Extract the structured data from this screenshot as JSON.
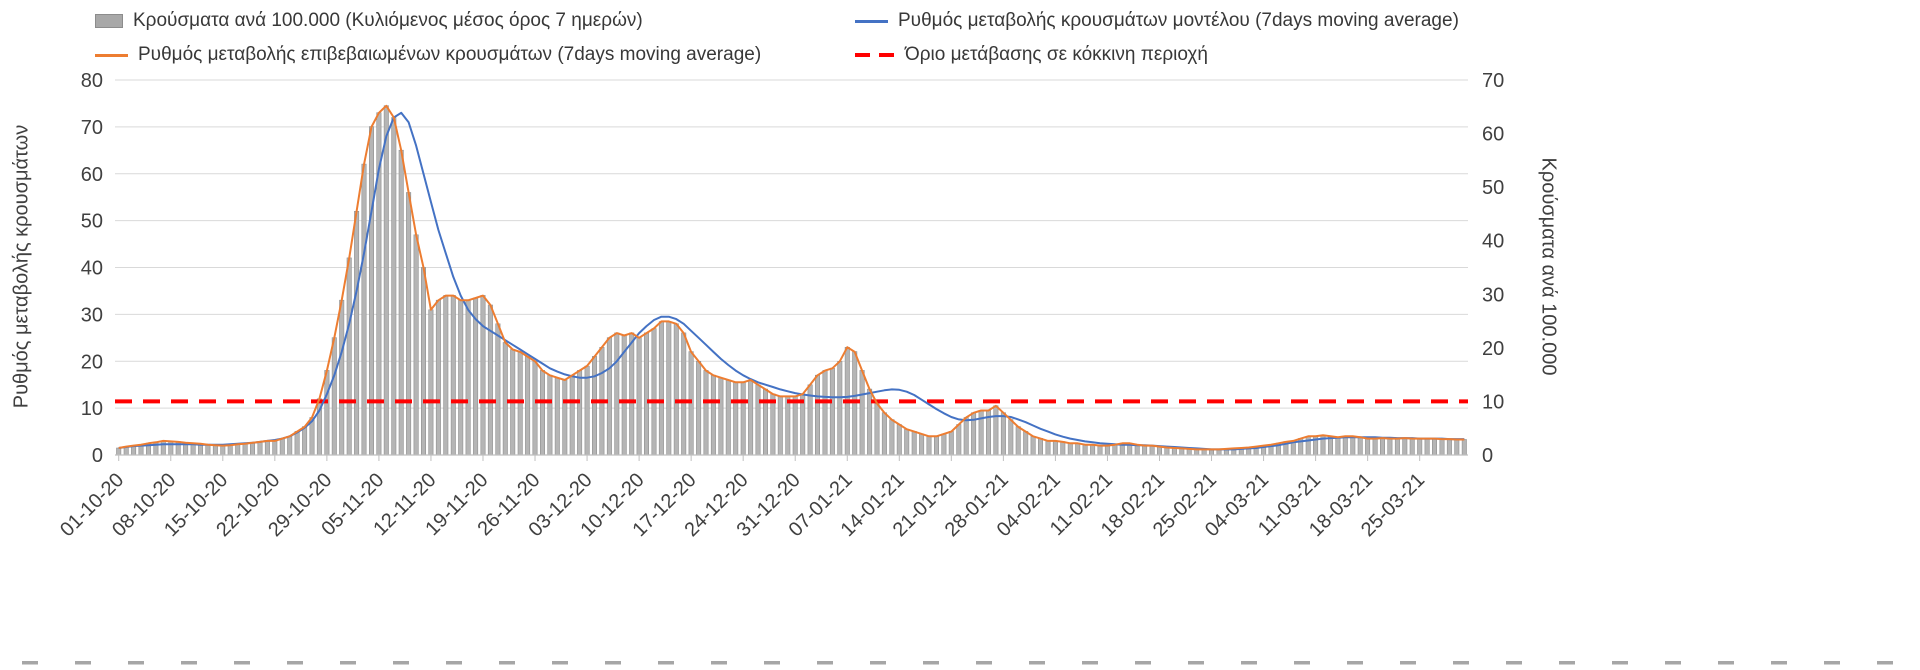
{
  "legend": [
    {
      "label": "Κρούσματα ανά 100.000 (Κυλιόμενος μέσος όρος 7 ημερών)",
      "type": "bar",
      "color": "#a8a8a8"
    },
    {
      "label": "Ρυθμός μεταβολής κρουσμάτων μοντέλου (7days moving average)",
      "type": "line",
      "color": "#4472c4"
    },
    {
      "label": "Ρυθμός μεταβολής επιβεβαιωμένων κρουσμάτων (7days moving average)",
      "type": "line",
      "color": "#ed7d31"
    },
    {
      "label": "Όριο μετάβασης σε κόκκινη περιοχή",
      "type": "dashed",
      "color": "#ff0000"
    }
  ],
  "chart_data": {
    "type": "combo",
    "title": "",
    "left_axis": {
      "label": "Ρυθμός μεταβολής κρουσμάτων",
      "range": [
        0,
        80
      ],
      "ticks": [
        0,
        10,
        20,
        30,
        40,
        50,
        60,
        70,
        80
      ]
    },
    "right_axis": {
      "label": "Κρούσματα ανά 100.000",
      "range": [
        0,
        70
      ],
      "ticks": [
        0,
        10,
        20,
        30,
        40,
        50,
        60,
        70
      ]
    },
    "x_tick_labels": [
      "01-10-20",
      "08-10-20",
      "15-10-20",
      "22-10-20",
      "29-10-20",
      "05-11-20",
      "12-11-20",
      "19-11-20",
      "26-11-20",
      "03-12-20",
      "10-12-20",
      "17-12-20",
      "24-12-20",
      "31-12-20",
      "07-01-21",
      "14-01-21",
      "21-01-21",
      "28-01-21",
      "04-02-21",
      "11-02-21",
      "18-02-21",
      "25-02-21",
      "04-03-21",
      "11-03-21",
      "18-03-21",
      "25-03-21"
    ],
    "x_tick_interval_days": 7,
    "grid": "horizontal",
    "threshold": {
      "name": "Όριο μετάβασης σε κόκκινη περιοχή",
      "value": 10,
      "axis": "right",
      "color": "#ff0000"
    },
    "series": [
      {
        "name": "Κρούσματα ανά 100.000 (Κυλιόμενος μέσος όρος 7 ημερών)",
        "type": "bar",
        "axis": "right",
        "color": "#b5b5b5",
        "stroke": "#8f8f8f",
        "values": [
          1.3,
          1.6,
          1.8,
          1.9,
          2.2,
          2.4,
          2.6,
          2.5,
          2.5,
          2.3,
          2.2,
          2.1,
          1.9,
          1.8,
          1.8,
          1.8,
          2.0,
          2.1,
          2.3,
          2.5,
          2.6,
          2.6,
          3.1,
          3.5,
          4.4,
          5.3,
          7.0,
          10.5,
          15.8,
          21.9,
          28.9,
          36.8,
          45.5,
          54.3,
          61.3,
          63.9,
          65.2,
          63.0,
          56.9,
          49.0,
          41.1,
          35.0,
          27.1,
          28.9,
          29.8,
          29.8,
          28.9,
          28.9,
          29.3,
          29.8,
          28.0,
          24.5,
          21.0,
          19.7,
          19.3,
          18.4,
          17.5,
          15.8,
          14.9,
          14.4,
          14.0,
          14.9,
          15.8,
          16.6,
          18.4,
          20.1,
          21.9,
          22.8,
          22.3,
          22.8,
          21.9,
          22.8,
          23.6,
          24.9,
          24.9,
          24.5,
          22.8,
          19.3,
          17.5,
          15.8,
          14.9,
          14.4,
          14.0,
          13.6,
          13.6,
          14.0,
          13.1,
          12.3,
          11.4,
          10.9,
          10.9,
          10.9,
          11.4,
          13.1,
          14.9,
          15.8,
          16.2,
          17.5,
          20.1,
          19.3,
          15.8,
          12.3,
          9.6,
          7.9,
          6.6,
          5.7,
          4.8,
          4.4,
          3.9,
          3.5,
          3.5,
          3.9,
          4.4,
          5.7,
          7.0,
          7.9,
          8.3,
          8.3,
          9.2,
          7.9,
          6.6,
          5.3,
          4.4,
          3.5,
          3.1,
          2.6,
          2.6,
          2.5,
          2.2,
          2.2,
          1.9,
          1.9,
          1.8,
          1.8,
          1.9,
          2.2,
          2.2,
          1.9,
          1.8,
          1.8,
          1.6,
          1.4,
          1.3,
          1.2,
          1.1,
          1.1,
          1.1,
          1.1,
          1.1,
          1.1,
          1.2,
          1.3,
          1.4,
          1.6,
          1.8,
          1.9,
          2.2,
          2.5,
          2.6,
          3.1,
          3.5,
          3.5,
          3.7,
          3.5,
          3.3,
          3.5,
          3.5,
          3.3,
          3.1,
          3.1,
          3.2,
          3.1,
          3.1,
          3.2,
          3.1,
          3.1,
          3.1,
          3.1,
          3.0,
          3.0,
          2.9,
          2.9
        ]
      },
      {
        "name": "Ρυθμός μεταβολής κρουσμάτων μοντέλου (7days moving average)",
        "type": "line",
        "axis": "left",
        "color": "#4472c4",
        "values": [
          1.5,
          1.7,
          1.9,
          2.0,
          2.1,
          2.2,
          2.3,
          2.3,
          2.3,
          2.3,
          2.3,
          2.2,
          2.2,
          2.2,
          2.2,
          2.3,
          2.4,
          2.5,
          2.6,
          2.8,
          3.0,
          3.2,
          3.5,
          4.0,
          4.8,
          5.8,
          7.2,
          9.5,
          13.0,
          17.0,
          22.0,
          28.0,
          35.0,
          43.0,
          52.0,
          61.0,
          68.0,
          72.0,
          73.0,
          71.0,
          66.0,
          60.0,
          54.0,
          48.0,
          43.0,
          38.0,
          34.0,
          31.0,
          29.0,
          27.5,
          26.5,
          25.5,
          24.5,
          23.5,
          22.5,
          21.5,
          20.5,
          19.5,
          18.5,
          17.8,
          17.2,
          16.8,
          16.5,
          16.5,
          16.8,
          17.5,
          18.5,
          20.0,
          22.0,
          24.0,
          26.0,
          27.5,
          28.8,
          29.5,
          29.5,
          29.0,
          28.0,
          26.5,
          25.0,
          23.5,
          22.0,
          20.5,
          19.2,
          18.0,
          17.0,
          16.2,
          15.5,
          15.0,
          14.5,
          14.0,
          13.6,
          13.2,
          12.9,
          12.7,
          12.5,
          12.4,
          12.3,
          12.3,
          12.4,
          12.6,
          12.9,
          13.2,
          13.5,
          13.8,
          14.0,
          13.9,
          13.5,
          12.8,
          11.8,
          10.8,
          9.8,
          8.9,
          8.1,
          7.6,
          7.4,
          7.5,
          7.8,
          8.1,
          8.3,
          8.3,
          8.1,
          7.6,
          7.0,
          6.3,
          5.6,
          5.0,
          4.4,
          3.9,
          3.5,
          3.2,
          2.9,
          2.7,
          2.5,
          2.4,
          2.3,
          2.2,
          2.2,
          2.1,
          2.1,
          2.0,
          1.9,
          1.8,
          1.7,
          1.6,
          1.5,
          1.4,
          1.3,
          1.2,
          1.2,
          1.2,
          1.2,
          1.3,
          1.4,
          1.5,
          1.7,
          1.9,
          2.1,
          2.4,
          2.7,
          2.9,
          3.1,
          3.3,
          3.5,
          3.6,
          3.7,
          3.8,
          3.8,
          3.8,
          3.8,
          3.8,
          3.7,
          3.7,
          3.6,
          3.6,
          3.6,
          3.5,
          3.5,
          3.5,
          3.5,
          3.4,
          3.4,
          3.4
        ]
      },
      {
        "name": "Ρυθμός μεταβολής επιβεβαιωμένων κρουσμάτων (7days moving average)",
        "type": "line",
        "axis": "left",
        "color": "#ed7d31",
        "values": [
          1.5,
          1.8,
          2.0,
          2.2,
          2.5,
          2.7,
          3.0,
          2.9,
          2.8,
          2.6,
          2.5,
          2.4,
          2.2,
          2.1,
          2.0,
          2.1,
          2.3,
          2.4,
          2.6,
          2.8,
          3.0,
          3.0,
          3.5,
          4.0,
          5.0,
          6.0,
          8.0,
          12.0,
          18.0,
          25.0,
          33.0,
          42.0,
          52.0,
          62.0,
          70.0,
          73.0,
          74.5,
          72.0,
          65.0,
          56.0,
          47.0,
          40.0,
          31.0,
          33.0,
          34.0,
          34.0,
          33.0,
          33.0,
          33.5,
          34.0,
          32.0,
          28.0,
          24.0,
          22.5,
          22.0,
          21.0,
          20.0,
          18.0,
          17.0,
          16.5,
          16.0,
          17.0,
          18.0,
          19.0,
          21.0,
          23.0,
          25.0,
          26.0,
          25.5,
          26.0,
          25.0,
          26.0,
          27.0,
          28.5,
          28.5,
          28.0,
          26.0,
          22.0,
          20.0,
          18.0,
          17.0,
          16.5,
          16.0,
          15.5,
          15.5,
          16.0,
          15.0,
          14.0,
          13.0,
          12.5,
          12.5,
          12.5,
          13.0,
          15.0,
          17.0,
          18.0,
          18.5,
          20.0,
          23.0,
          22.0,
          18.0,
          14.0,
          11.0,
          9.0,
          7.5,
          6.5,
          5.5,
          5.0,
          4.5,
          4.0,
          4.0,
          4.5,
          5.0,
          6.5,
          8.0,
          9.0,
          9.5,
          9.5,
          10.5,
          9.0,
          7.5,
          6.0,
          5.0,
          4.0,
          3.5,
          3.0,
          3.0,
          2.8,
          2.5,
          2.5,
          2.2,
          2.2,
          2.0,
          2.0,
          2.2,
          2.5,
          2.5,
          2.2,
          2.0,
          2.0,
          1.8,
          1.6,
          1.5,
          1.4,
          1.3,
          1.2,
          1.2,
          1.2,
          1.2,
          1.3,
          1.4,
          1.5,
          1.6,
          1.8,
          2.0,
          2.2,
          2.5,
          2.8,
          3.0,
          3.5,
          4.0,
          4.0,
          4.2,
          4.0,
          3.8,
          4.0,
          4.0,
          3.8,
          3.5,
          3.5,
          3.6,
          3.5,
          3.5,
          3.6,
          3.5,
          3.5,
          3.5,
          3.5,
          3.4,
          3.4,
          3.3,
          3.3
        ]
      }
    ]
  }
}
